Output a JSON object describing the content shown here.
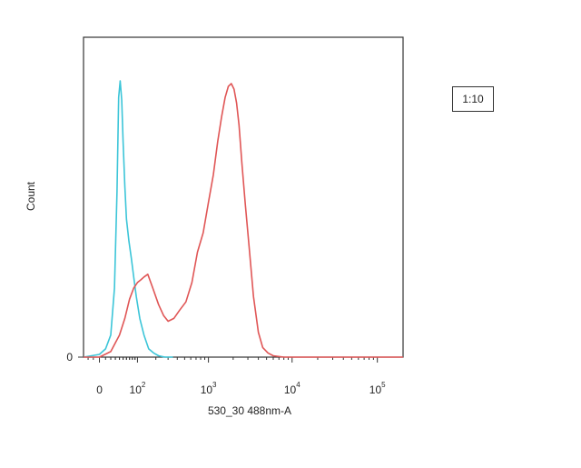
{
  "chart_data": {
    "type": "line",
    "xlabel": "530_30 488nm-A",
    "ylabel": "Count",
    "x_scale": "biexponential",
    "xlim": [
      -30,
      200000
    ],
    "x_ticks": [
      {
        "value": 0,
        "label": "0",
        "exp": ""
      },
      {
        "value": 100,
        "label": "10",
        "exp": "2"
      },
      {
        "value": 1000,
        "label": "10",
        "exp": "3"
      },
      {
        "value": 10000,
        "label": "10",
        "exp": "4"
      },
      {
        "value": 100000,
        "label": "10",
        "exp": "5"
      }
    ],
    "y_ticks": [
      {
        "value": 0,
        "label": "0"
      }
    ],
    "ylim": [
      0,
      100
    ],
    "annotation": "1:10",
    "series": [
      {
        "color": "#3cc5d8",
        "x": [
          -30,
          0,
          10,
          20,
          28,
          34,
          38,
          42,
          46,
          50,
          55,
          60,
          68,
          76,
          85,
          95,
          110,
          130,
          155,
          185,
          220,
          270,
          350
        ],
        "y": [
          0,
          1,
          3,
          8,
          25,
          60,
          94,
          100,
          93,
          78,
          62,
          50,
          42,
          36,
          29,
          22,
          14,
          8,
          3,
          1.5,
          0.5,
          0,
          0
        ]
      },
      {
        "color": "#e05656",
        "x": [
          -30,
          0,
          20,
          40,
          55,
          70,
          85,
          100,
          115,
          130,
          150,
          180,
          220,
          260,
          300,
          360,
          430,
          520,
          620,
          730,
          860,
          1000,
          1150,
          1300,
          1450,
          1600,
          1750,
          1900,
          2050,
          2200,
          2350,
          2550,
          2800,
          3100,
          3500,
          4000,
          4500,
          5200,
          6000,
          8000,
          12000,
          50000,
          200000
        ],
        "y": [
          0,
          0,
          2,
          8,
          14,
          21,
          25,
          27,
          28,
          29,
          30,
          25,
          19,
          15,
          13,
          14,
          17,
          20,
          27,
          38,
          45,
          56,
          66,
          78,
          87,
          94,
          98,
          99,
          97,
          92,
          84,
          70,
          55,
          40,
          22,
          9,
          3.5,
          1.5,
          0.5,
          0,
          0,
          0,
          0
        ]
      }
    ]
  }
}
